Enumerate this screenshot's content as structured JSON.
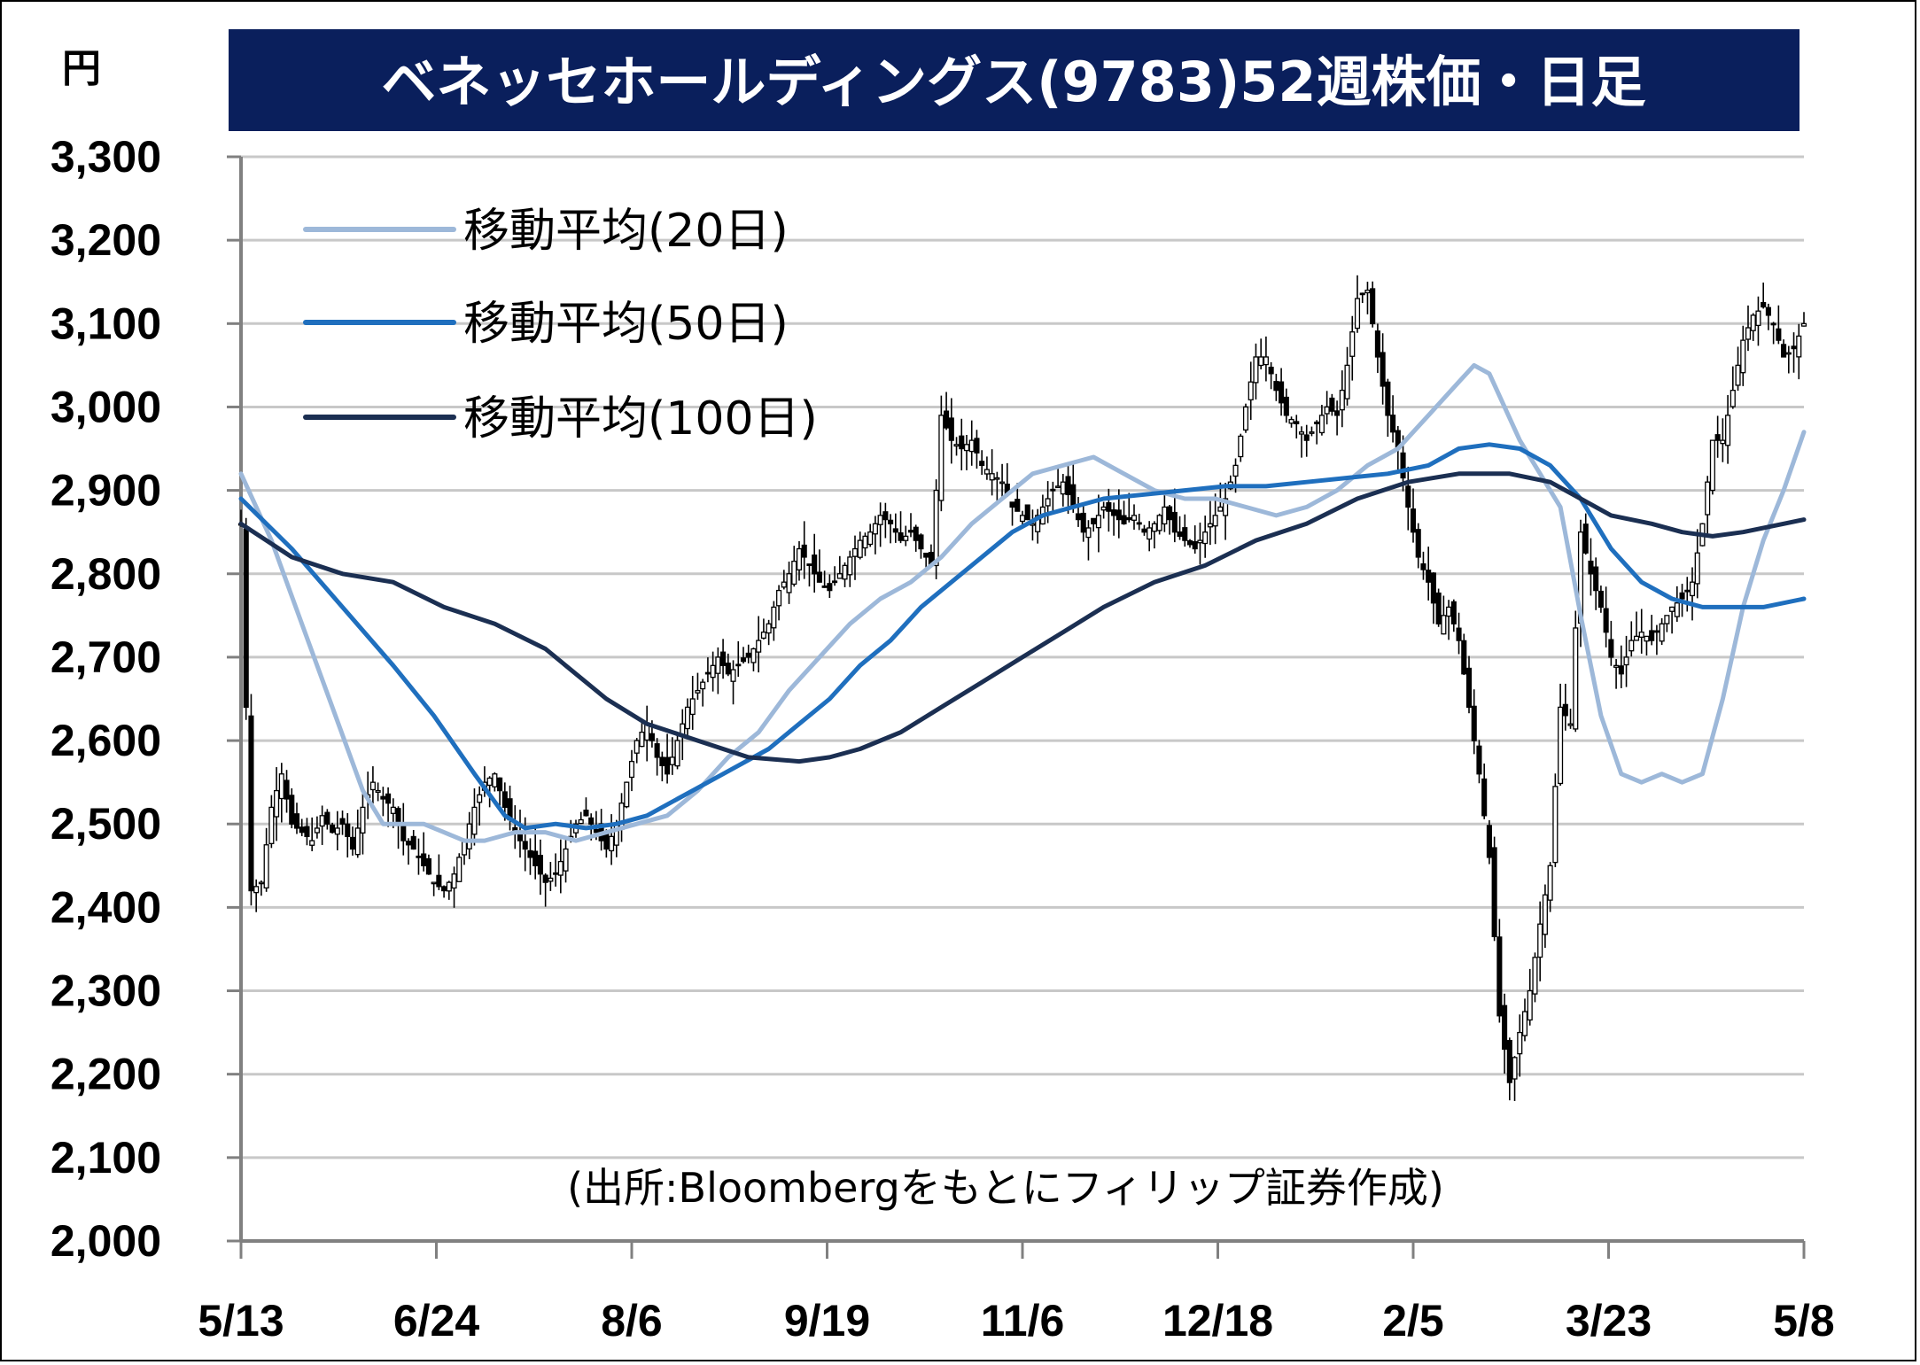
{
  "chart_data": {
    "type": "candlestick",
    "title": "ベネッセホールディングス(9783)52週株価・日足",
    "ylabel": "円",
    "ylim": [
      2000,
      3300
    ],
    "yticks": [
      "2,000",
      "2,100",
      "2,200",
      "2,300",
      "2,400",
      "2,500",
      "2,600",
      "2,700",
      "2,800",
      "2,900",
      "3,000",
      "3,100",
      "3,200",
      "3,300"
    ],
    "xticks": [
      "5/13",
      "6/24",
      "8/6",
      "9/19",
      "11/6",
      "12/18",
      "2/5",
      "3/23",
      "5/8"
    ],
    "grid": true,
    "legend_position": "top-left",
    "source_note": "(出所:Bloombergをもとにフィリップ証券作成)",
    "colors": {
      "title_bg": "#0a1f5c",
      "ma20": "#9db8d9",
      "ma50": "#1f6fbe",
      "ma100": "#1b2f52",
      "grid": "#c8c8c8"
    },
    "series": [
      {
        "name": "移動平均(20日)",
        "key": "ma20",
        "points": [
          [
            0,
            2920
          ],
          [
            6,
            2840
          ],
          [
            12,
            2740
          ],
          [
            18,
            2640
          ],
          [
            24,
            2540
          ],
          [
            28,
            2500
          ],
          [
            32,
            2500
          ],
          [
            36,
            2500
          ],
          [
            40,
            2490
          ],
          [
            44,
            2480
          ],
          [
            48,
            2480
          ],
          [
            54,
            2490
          ],
          [
            60,
            2490
          ],
          [
            66,
            2480
          ],
          [
            72,
            2490
          ],
          [
            78,
            2500
          ],
          [
            84,
            2510
          ],
          [
            90,
            2540
          ],
          [
            96,
            2580
          ],
          [
            102,
            2610
          ],
          [
            108,
            2660
          ],
          [
            114,
            2700
          ],
          [
            120,
            2740
          ],
          [
            126,
            2770
          ],
          [
            132,
            2790
          ],
          [
            138,
            2820
          ],
          [
            144,
            2860
          ],
          [
            150,
            2890
          ],
          [
            156,
            2920
          ],
          [
            162,
            2930
          ],
          [
            168,
            2940
          ],
          [
            174,
            2920
          ],
          [
            180,
            2900
          ],
          [
            186,
            2890
          ],
          [
            192,
            2890
          ],
          [
            198,
            2880
          ],
          [
            204,
            2870
          ],
          [
            210,
            2880
          ],
          [
            216,
            2900
          ],
          [
            222,
            2930
          ],
          [
            228,
            2950
          ],
          [
            234,
            2990
          ],
          [
            240,
            3030
          ],
          [
            243,
            3050
          ],
          [
            246,
            3040
          ],
          [
            252,
            2960
          ],
          [
            256,
            2920
          ],
          [
            260,
            2880
          ],
          [
            264,
            2750
          ],
          [
            268,
            2630
          ],
          [
            272,
            2560
          ],
          [
            276,
            2550
          ],
          [
            280,
            2560
          ],
          [
            284,
            2550
          ],
          [
            288,
            2560
          ],
          [
            292,
            2650
          ],
          [
            296,
            2760
          ],
          [
            300,
            2840
          ],
          [
            304,
            2900
          ],
          [
            308,
            2970
          ]
        ]
      },
      {
        "name": "移動平均(50日)",
        "key": "ma50",
        "points": [
          [
            0,
            2890
          ],
          [
            10,
            2830
          ],
          [
            20,
            2760
          ],
          [
            30,
            2690
          ],
          [
            38,
            2630
          ],
          [
            46,
            2560
          ],
          [
            52,
            2510
          ],
          [
            56,
            2495
          ],
          [
            62,
            2500
          ],
          [
            68,
            2495
          ],
          [
            74,
            2500
          ],
          [
            80,
            2510
          ],
          [
            86,
            2530
          ],
          [
            92,
            2550
          ],
          [
            98,
            2570
          ],
          [
            104,
            2590
          ],
          [
            110,
            2620
          ],
          [
            116,
            2650
          ],
          [
            122,
            2690
          ],
          [
            128,
            2720
          ],
          [
            134,
            2760
          ],
          [
            140,
            2790
          ],
          [
            146,
            2820
          ],
          [
            152,
            2850
          ],
          [
            158,
            2870
          ],
          [
            164,
            2880
          ],
          [
            170,
            2890
          ],
          [
            178,
            2895
          ],
          [
            186,
            2900
          ],
          [
            194,
            2905
          ],
          [
            202,
            2905
          ],
          [
            210,
            2910
          ],
          [
            218,
            2915
          ],
          [
            226,
            2920
          ],
          [
            234,
            2930
          ],
          [
            240,
            2950
          ],
          [
            246,
            2955
          ],
          [
            252,
            2950
          ],
          [
            258,
            2930
          ],
          [
            264,
            2890
          ],
          [
            270,
            2830
          ],
          [
            276,
            2790
          ],
          [
            282,
            2770
          ],
          [
            288,
            2760
          ],
          [
            294,
            2760
          ],
          [
            300,
            2760
          ],
          [
            308,
            2770
          ]
        ]
      },
      {
        "name": "移動平均(100日)",
        "key": "ma100",
        "points": [
          [
            0,
            2860
          ],
          [
            10,
            2820
          ],
          [
            20,
            2800
          ],
          [
            30,
            2790
          ],
          [
            40,
            2760
          ],
          [
            50,
            2740
          ],
          [
            60,
            2710
          ],
          [
            66,
            2680
          ],
          [
            72,
            2650
          ],
          [
            80,
            2620
          ],
          [
            90,
            2600
          ],
          [
            100,
            2580
          ],
          [
            110,
            2575
          ],
          [
            116,
            2580
          ],
          [
            122,
            2590
          ],
          [
            130,
            2610
          ],
          [
            138,
            2640
          ],
          [
            146,
            2670
          ],
          [
            154,
            2700
          ],
          [
            162,
            2730
          ],
          [
            170,
            2760
          ],
          [
            180,
            2790
          ],
          [
            190,
            2810
          ],
          [
            200,
            2840
          ],
          [
            210,
            2860
          ],
          [
            220,
            2890
          ],
          [
            230,
            2910
          ],
          [
            240,
            2920
          ],
          [
            250,
            2920
          ],
          [
            258,
            2910
          ],
          [
            264,
            2890
          ],
          [
            270,
            2870
          ],
          [
            278,
            2860
          ],
          [
            284,
            2850
          ],
          [
            290,
            2845
          ],
          [
            296,
            2850
          ],
          [
            304,
            2860
          ],
          [
            308,
            2865
          ]
        ]
      }
    ],
    "price_path": [
      [
        0,
        2860
      ],
      [
        2,
        2420
      ],
      [
        4,
        2430
      ],
      [
        6,
        2520
      ],
      [
        8,
        2560
      ],
      [
        10,
        2500
      ],
      [
        12,
        2490
      ],
      [
        14,
        2480
      ],
      [
        16,
        2510
      ],
      [
        18,
        2490
      ],
      [
        20,
        2500
      ],
      [
        22,
        2470
      ],
      [
        24,
        2520
      ],
      [
        26,
        2550
      ],
      [
        28,
        2530
      ],
      [
        30,
        2520
      ],
      [
        32,
        2480
      ],
      [
        34,
        2470
      ],
      [
        36,
        2450
      ],
      [
        38,
        2430
      ],
      [
        40,
        2420
      ],
      [
        42,
        2440
      ],
      [
        44,
        2480
      ],
      [
        46,
        2520
      ],
      [
        48,
        2550
      ],
      [
        50,
        2560
      ],
      [
        52,
        2520
      ],
      [
        54,
        2490
      ],
      [
        56,
        2470
      ],
      [
        58,
        2450
      ],
      [
        60,
        2430
      ],
      [
        62,
        2440
      ],
      [
        64,
        2470
      ],
      [
        66,
        2500
      ],
      [
        68,
        2510
      ],
      [
        70,
        2490
      ],
      [
        72,
        2470
      ],
      [
        74,
        2500
      ],
      [
        76,
        2550
      ],
      [
        78,
        2600
      ],
      [
        80,
        2620
      ],
      [
        82,
        2580
      ],
      [
        84,
        2560
      ],
      [
        86,
        2600
      ],
      [
        88,
        2640
      ],
      [
        90,
        2660
      ],
      [
        92,
        2680
      ],
      [
        94,
        2700
      ],
      [
        96,
        2680
      ],
      [
        98,
        2690
      ],
      [
        100,
        2700
      ],
      [
        102,
        2720
      ],
      [
        104,
        2740
      ],
      [
        106,
        2780
      ],
      [
        108,
        2800
      ],
      [
        110,
        2830
      ],
      [
        112,
        2810
      ],
      [
        114,
        2790
      ],
      [
        116,
        2780
      ],
      [
        118,
        2800
      ],
      [
        120,
        2820
      ],
      [
        122,
        2840
      ],
      [
        124,
        2850
      ],
      [
        126,
        2870
      ],
      [
        128,
        2860
      ],
      [
        130,
        2840
      ],
      [
        132,
        2850
      ],
      [
        134,
        2830
      ],
      [
        136,
        2810
      ],
      [
        138,
        2990
      ],
      [
        140,
        2960
      ],
      [
        142,
        2950
      ],
      [
        144,
        2960
      ],
      [
        146,
        2930
      ],
      [
        148,
        2920
      ],
      [
        150,
        2910
      ],
      [
        152,
        2880
      ],
      [
        154,
        2870
      ],
      [
        156,
        2860
      ],
      [
        158,
        2880
      ],
      [
        160,
        2900
      ],
      [
        162,
        2910
      ],
      [
        164,
        2880
      ],
      [
        166,
        2850
      ],
      [
        168,
        2860
      ],
      [
        170,
        2880
      ],
      [
        172,
        2870
      ],
      [
        174,
        2860
      ],
      [
        176,
        2870
      ],
      [
        178,
        2850
      ],
      [
        180,
        2860
      ],
      [
        182,
        2880
      ],
      [
        184,
        2850
      ],
      [
        186,
        2840
      ],
      [
        188,
        2830
      ],
      [
        190,
        2850
      ],
      [
        192,
        2870
      ],
      [
        194,
        2890
      ],
      [
        196,
        2930
      ],
      [
        198,
        3000
      ],
      [
        200,
        3060
      ],
      [
        202,
        3060
      ],
      [
        204,
        3020
      ],
      [
        206,
        2990
      ],
      [
        208,
        2980
      ],
      [
        210,
        2960
      ],
      [
        212,
        2980
      ],
      [
        214,
        3000
      ],
      [
        216,
        2990
      ],
      [
        218,
        3050
      ],
      [
        220,
        3130
      ],
      [
        222,
        3140
      ],
      [
        224,
        3060
      ],
      [
        226,
        2990
      ],
      [
        228,
        2950
      ],
      [
        230,
        2880
      ],
      [
        232,
        2820
      ],
      [
        234,
        2790
      ],
      [
        236,
        2740
      ],
      [
        238,
        2760
      ],
      [
        240,
        2720
      ],
      [
        242,
        2640
      ],
      [
        244,
        2560
      ],
      [
        246,
        2460
      ],
      [
        248,
        2270
      ],
      [
        250,
        2190
      ],
      [
        252,
        2250
      ],
      [
        254,
        2300
      ],
      [
        256,
        2380
      ],
      [
        258,
        2450
      ],
      [
        260,
        2640
      ],
      [
        262,
        2620
      ],
      [
        264,
        2850
      ],
      [
        266,
        2800
      ],
      [
        268,
        2760
      ],
      [
        270,
        2700
      ],
      [
        272,
        2680
      ],
      [
        274,
        2720
      ],
      [
        276,
        2730
      ],
      [
        278,
        2720
      ],
      [
        280,
        2740
      ],
      [
        282,
        2760
      ],
      [
        284,
        2770
      ],
      [
        286,
        2790
      ],
      [
        288,
        2860
      ],
      [
        290,
        2960
      ],
      [
        292,
        2960
      ],
      [
        294,
        3020
      ],
      [
        296,
        3080
      ],
      [
        298,
        3110
      ],
      [
        300,
        3120
      ],
      [
        302,
        3100
      ],
      [
        304,
        3060
      ],
      [
        306,
        3070
      ],
      [
        308,
        3100
      ]
    ],
    "n_days": 308
  }
}
